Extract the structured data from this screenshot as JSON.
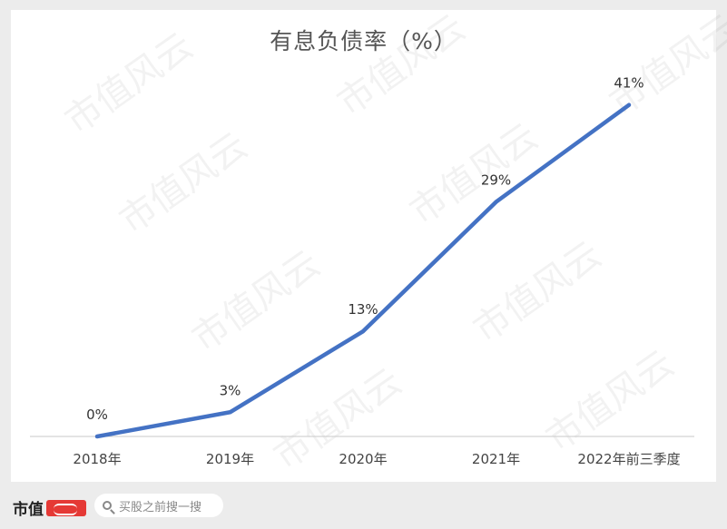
{
  "chart_data": {
    "type": "line",
    "title": "有息负债率（%）",
    "categories": [
      "2018年",
      "2019年",
      "2020年",
      "2021年",
      "2022年前三季度"
    ],
    "series": [
      {
        "values": [
          0,
          3,
          13,
          29,
          41
        ],
        "data_labels": [
          "0%",
          "3%",
          "13%",
          "29%",
          "41%"
        ]
      }
    ],
    "xlabel": "",
    "ylabel": "",
    "ylim": [
      0,
      45
    ],
    "grid": false,
    "line_color": "#4472c4"
  },
  "footer": {
    "brand": "市值",
    "search_placeholder": "买股之前搜一搜"
  },
  "watermark": "市值风云"
}
